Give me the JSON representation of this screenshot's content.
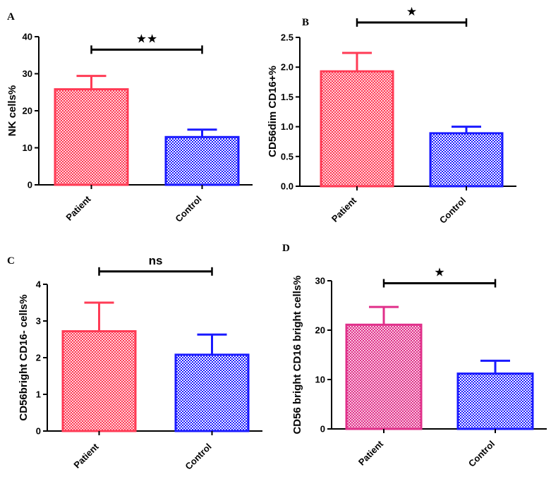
{
  "patterns": {
    "red": "#ff3b55",
    "blue": "#1a1aff",
    "magenta": "#e0308a",
    "black": "#000000"
  },
  "chart_data": [
    {
      "type": "bar",
      "panel": "A",
      "ylabel": "NK cells%",
      "categories": [
        "Patient",
        "Control"
      ],
      "values": [
        25.8,
        12.9
      ],
      "errors": [
        3.6,
        2.0
      ],
      "ylim": [
        0,
        40
      ],
      "yticks": [
        "0",
        "10",
        "20",
        "30",
        "40"
      ],
      "ytick_values": [
        0,
        10,
        20,
        30,
        40
      ],
      "significance": "★★",
      "bracket_value": 36.5,
      "bar_colors": [
        "red",
        "blue"
      ]
    },
    {
      "type": "bar",
      "panel": "B",
      "ylabel": "CD56dim CD16+%",
      "categories": [
        "Patient",
        "Control"
      ],
      "values": [
        1.93,
        0.89
      ],
      "errors": [
        0.31,
        0.11
      ],
      "ylim": [
        0,
        2.5
      ],
      "yticks": [
        "0.0",
        "0.5",
        "1.0",
        "1.5",
        "2.0",
        "2.5"
      ],
      "ytick_values": [
        0,
        0.5,
        1.0,
        1.5,
        2.0,
        2.5
      ],
      "significance": "★",
      "bracket_value": 2.75,
      "bar_colors": [
        "red",
        "blue"
      ]
    },
    {
      "type": "bar",
      "panel": "C",
      "ylabel": "CD56bright CD16- cells%",
      "categories": [
        "Patient",
        "Control"
      ],
      "values": [
        2.72,
        2.08
      ],
      "errors": [
        0.78,
        0.55
      ],
      "ylim": [
        0,
        4
      ],
      "yticks": [
        "0",
        "1",
        "2",
        "3",
        "4"
      ],
      "ytick_values": [
        0,
        1,
        2,
        3,
        4
      ],
      "significance": "ns",
      "bracket_value": 4.35,
      "bar_colors": [
        "red",
        "blue"
      ]
    },
    {
      "type": "bar",
      "panel": "D",
      "ylabel": "CD56 bright CD16 bright cells%",
      "categories": [
        "Patient",
        "Control"
      ],
      "values": [
        21.1,
        11.2
      ],
      "errors": [
        3.6,
        2.6
      ],
      "ylim": [
        0,
        30
      ],
      "yticks": [
        "0",
        "10",
        "20",
        "30"
      ],
      "ytick_values": [
        0,
        10,
        20,
        30
      ],
      "significance": "★",
      "bracket_value": 29.5,
      "bar_colors": [
        "magenta",
        "blue"
      ]
    }
  ]
}
